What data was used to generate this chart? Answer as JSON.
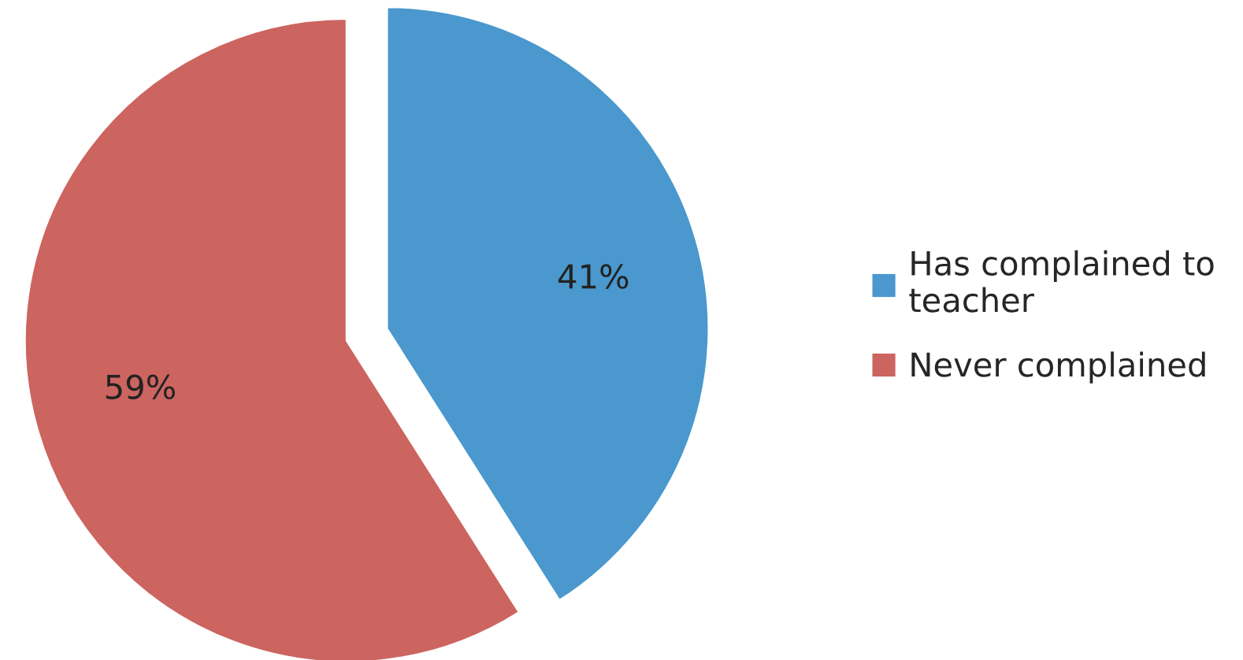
{
  "chart_data": {
    "type": "pie",
    "categories": [
      "Has complained to teacher",
      "Never complained"
    ],
    "values": [
      41,
      59
    ],
    "colors": [
      "#4a98cd",
      "#cc6460"
    ],
    "value_labels": [
      "41%",
      "59%"
    ],
    "legend": "right"
  }
}
